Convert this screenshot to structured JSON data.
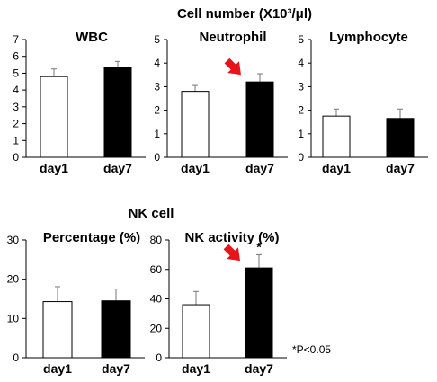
{
  "figure": {
    "top_title": "Cell number  (X10³/μl)",
    "section_title": "NK cell",
    "footnote": "*P<0.05"
  },
  "colors": {
    "day1": "#ffffff",
    "day7": "#000000",
    "arrow": "#e8141c",
    "axis": "#000000"
  },
  "chart_data": [
    {
      "type": "bar",
      "title": "WBC",
      "categories": [
        "day1",
        "day7"
      ],
      "values": [
        4.8,
        5.35
      ],
      "errors": [
        0.45,
        0.35
      ],
      "ylim": [
        0,
        7
      ],
      "yticks": [
        0,
        1,
        2,
        3,
        4,
        5,
        6,
        7
      ],
      "significant": [
        false,
        false
      ],
      "highlight_arrow": false
    },
    {
      "type": "bar",
      "title": "Neutrophil",
      "categories": [
        "day1",
        "day7"
      ],
      "values": [
        2.8,
        3.2
      ],
      "errors": [
        0.25,
        0.35
      ],
      "ylim": [
        0,
        5
      ],
      "yticks": [
        0,
        1,
        2,
        3,
        4,
        5
      ],
      "significant": [
        false,
        false
      ],
      "highlight_arrow": true
    },
    {
      "type": "bar",
      "title": "Lymphocyte",
      "categories": [
        "day1",
        "day7"
      ],
      "values": [
        1.75,
        1.65
      ],
      "errors": [
        0.3,
        0.4
      ],
      "ylim": [
        0,
        5
      ],
      "yticks": [
        0,
        1,
        2,
        3,
        4,
        5
      ],
      "significant": [
        false,
        false
      ],
      "highlight_arrow": false
    },
    {
      "type": "bar",
      "title": "Percentage (%)",
      "categories": [
        "day1",
        "day7"
      ],
      "values": [
        14.3,
        14.5
      ],
      "errors": [
        3.8,
        3.0
      ],
      "ylim": [
        0,
        30
      ],
      "yticks": [
        0,
        10,
        20,
        30
      ],
      "significant": [
        false,
        false
      ],
      "highlight_arrow": false
    },
    {
      "type": "bar",
      "title": "NK activity (%)",
      "categories": [
        "day1",
        "day7"
      ],
      "values": [
        36,
        61
      ],
      "errors": [
        9,
        9
      ],
      "ylim": [
        0,
        80
      ],
      "yticks": [
        0,
        20,
        40,
        60,
        80
      ],
      "significant": [
        false,
        true
      ],
      "highlight_arrow": true
    }
  ]
}
